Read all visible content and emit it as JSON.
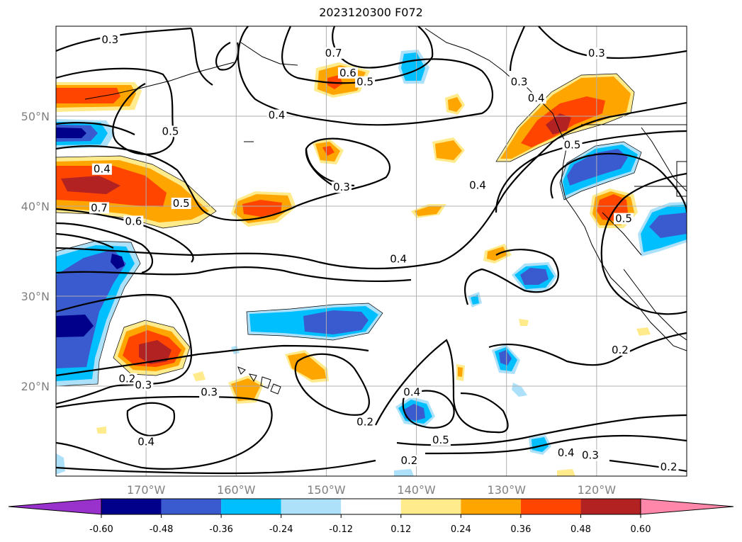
{
  "title": "2023120300 F072",
  "map": {
    "projection": "equirectangular",
    "lon_range": [
      -180,
      -110
    ],
    "lat_range": [
      10,
      60
    ],
    "grid": true,
    "lon_ticks": [
      {
        "lon": -170,
        "label": "170°W"
      },
      {
        "lon": -160,
        "label": "160°W"
      },
      {
        "lon": -150,
        "label": "150°W"
      },
      {
        "lon": -140,
        "label": "140°W"
      },
      {
        "lon": -130,
        "label": "130°W"
      },
      {
        "lon": -120,
        "label": "120°W"
      }
    ],
    "lat_ticks": [
      {
        "lat": 20,
        "label": "20°N"
      },
      {
        "lat": 30,
        "label": "30°N"
      },
      {
        "lat": 40,
        "label": "40°N"
      },
      {
        "lat": 50,
        "label": "50°N"
      }
    ],
    "contour_labels": [
      {
        "text": "0.3",
        "lon": -174,
        "lat": 58.2
      },
      {
        "text": "0.7",
        "lon": -149.2,
        "lat": 56.7
      },
      {
        "text": "0.6",
        "lon": -147.6,
        "lat": 54.5
      },
      {
        "text": "0.5",
        "lon": -145.7,
        "lat": 53.5
      },
      {
        "text": "0.3",
        "lon": -128.6,
        "lat": 53.5
      },
      {
        "text": "0.4",
        "lon": -126.7,
        "lat": 51.7
      },
      {
        "text": "0.3",
        "lon": -120.0,
        "lat": 56.7
      },
      {
        "text": "0.4",
        "lon": -155.5,
        "lat": 49.8
      },
      {
        "text": "0.5",
        "lon": -167.3,
        "lat": 48.0
      },
      {
        "text": "0.4",
        "lon": -174.9,
        "lat": 43.8
      },
      {
        "text": "0.5",
        "lon": -166.1,
        "lat": 40.0
      },
      {
        "text": "0.7",
        "lon": -175.2,
        "lat": 39.5
      },
      {
        "text": "0.6",
        "lon": -171.4,
        "lat": 38.0
      },
      {
        "text": "0.3",
        "lon": -148.3,
        "lat": 41.8
      },
      {
        "text": "0.4",
        "lon": -133.2,
        "lat": 42.0
      },
      {
        "text": "0.5",
        "lon": -122.7,
        "lat": 46.5
      },
      {
        "text": "0.5",
        "lon": -117.0,
        "lat": 38.3
      },
      {
        "text": "0.4",
        "lon": -142.0,
        "lat": 33.8
      },
      {
        "text": "0.2",
        "lon": -172.1,
        "lat": 20.5
      },
      {
        "text": "0.3",
        "lon": -170.3,
        "lat": 19.8
      },
      {
        "text": "0.3",
        "lon": -163.0,
        "lat": 19.0
      },
      {
        "text": "0.4",
        "lon": -170.0,
        "lat": 13.5
      },
      {
        "text": "0.2",
        "lon": -145.7,
        "lat": 15.7
      },
      {
        "text": "0.4",
        "lon": -140.5,
        "lat": 19.0
      },
      {
        "text": "0.5",
        "lon": -137.3,
        "lat": 13.7
      },
      {
        "text": "0.2",
        "lon": -140.8,
        "lat": 11.4
      },
      {
        "text": "0.4",
        "lon": -123.4,
        "lat": 12.3
      },
      {
        "text": "0.3",
        "lon": -120.7,
        "lat": 12.0
      },
      {
        "text": "0.2",
        "lon": -117.4,
        "lat": 23.7
      },
      {
        "text": "0.2",
        "lon": -112.0,
        "lat": 10.7
      }
    ]
  },
  "colorbar": {
    "extend": "both",
    "colors": [
      "#9932CC",
      "#00008B",
      "#3A5ACF",
      "#00BFFF",
      "#ADE1FA",
      "#FFFFFF",
      "#FFEA8C",
      "#FFA500",
      "#FF4500",
      "#B22222",
      "#FF88AA"
    ],
    "ticks": [
      "-0.60",
      "-0.48",
      "-0.36",
      "-0.24",
      "-0.12",
      "0.12",
      "0.24",
      "0.36",
      "0.48",
      "0.60"
    ]
  }
}
